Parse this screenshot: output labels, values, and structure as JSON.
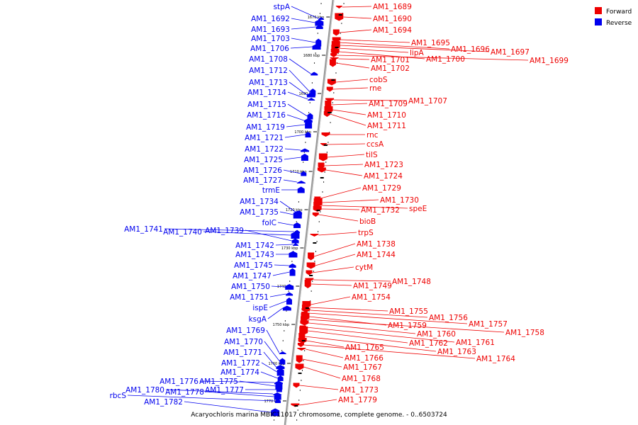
{
  "colors": {
    "forward": "#ee0000",
    "reverse": "#0000ee",
    "axis": "#999999"
  },
  "legend": [
    {
      "label": "Forward",
      "color": "#ee0000"
    },
    {
      "label": "Reverse",
      "color": "#0000ee"
    }
  ],
  "caption": "Acaryochloris marina MBIC11017 chromosome, complete genome. - 0..6503724",
  "ticks": [
    "1670 kbp",
    "1680 kbp",
    "1690 kbp",
    "1700 kbp",
    "1710 kbp",
    "1720 kbp",
    "1730 kbp",
    "1740 kbp",
    "1750 kbp",
    "1760 kbp",
    "1770 kbp"
  ],
  "forward_genes": [
    "AM1_1689",
    "AM1_1690",
    "AM1_1694",
    "AM1_1695",
    "AM1_1696",
    "AM1_1697",
    "lipA",
    "AM1_1700",
    "AM1_1699",
    "AM1_1701",
    "AM1_1702",
    "cobS",
    "rne",
    "AM1_1707",
    "AM1_1709",
    "AM1_1710",
    "AM1_1711",
    "rnc",
    "ccsA",
    "tilS",
    "AM1_1723",
    "AM1_1724",
    "AM1_1729",
    "AM1_1730",
    "speE",
    "AM1_1732",
    "bioB",
    "trpS",
    "AM1_1738",
    "AM1_1744",
    "cytM",
    "AM1_1748",
    "AM1_1749",
    "AM1_1754",
    "AM1_1755",
    "AM1_1756",
    "AM1_1757",
    "AM1_1759",
    "AM1_1758",
    "AM1_1760",
    "AM1_1761",
    "AM1_1762",
    "AM1_1763",
    "AM1_1765",
    "AM1_1764",
    "AM1_1766",
    "AM1_1767",
    "AM1_1768",
    "AM1_1773",
    "AM1_1779"
  ],
  "reverse_genes": [
    "stpA",
    "AM1_1692",
    "AM1_1693",
    "AM1_1703",
    "AM1_1706",
    "AM1_1708",
    "AM1_1712",
    "AM1_1713",
    "AM1_1714",
    "AM1_1715",
    "AM1_1716",
    "AM1_1719",
    "AM1_1721",
    "AM1_1722",
    "AM1_1725",
    "AM1_1726",
    "AM1_1727",
    "trmE",
    "AM1_1734",
    "AM1_1735",
    "folC",
    "AM1_1741",
    "AM1_1740",
    "AM1_1739",
    "AM1_1742",
    "AM1_1743",
    "AM1_1745",
    "AM1_1747",
    "AM1_1750",
    "AM1_1751",
    "ispE",
    "ksgA",
    "AM1_1769",
    "AM1_1770",
    "AM1_1771",
    "AM1_1772",
    "AM1_1774",
    "AM1_1776",
    "AM1_1775",
    "AM1_1777",
    "AM1_1780",
    "AM1_1778",
    "rbcS",
    "AM1_1782"
  ]
}
